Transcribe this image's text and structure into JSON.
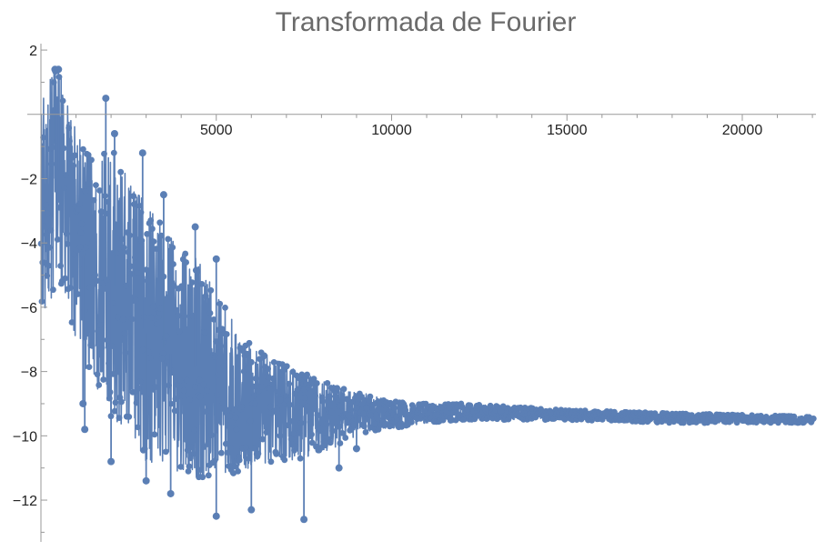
{
  "chart_data": {
    "type": "scatter",
    "title": "Transformada de Fourier",
    "xlabel": "",
    "ylabel": "",
    "xlim": [
      0,
      22050
    ],
    "ylim": [
      -13.3,
      2.2
    ],
    "grid": false,
    "joined": true,
    "series_color": "#5B7FB5",
    "x_major_ticks": [
      5000,
      10000,
      15000,
      20000
    ],
    "x_major_tick_labels": [
      "5000",
      "10000",
      "15000",
      "20000"
    ],
    "x_minor_ticks": [
      1000,
      2000,
      3000,
      4000,
      6000,
      7000,
      8000,
      9000,
      11000,
      12000,
      13000,
      14000,
      16000,
      17000,
      18000,
      19000,
      21000,
      22000
    ],
    "y_major_ticks": [
      2,
      -2,
      -4,
      -6,
      -8,
      -10,
      -12
    ],
    "y_major_tick_labels": [
      "2",
      "−2",
      "−4",
      "−6",
      "−8",
      "−10",
      "−12"
    ],
    "y_minor_ticks": [
      1,
      -1,
      -3,
      -5,
      -7,
      -9,
      -11,
      -13
    ],
    "envelope": {
      "x": [
        0,
        300,
        500,
        800,
        1200,
        1600,
        2000,
        2500,
        3000,
        3500,
        4000,
        4500,
        5000,
        5500,
        6000,
        7000,
        8000,
        9000,
        10000,
        11000,
        12000,
        15000,
        18000,
        22050
      ],
      "upper": [
        0.5,
        1.5,
        1.5,
        0.3,
        -1.0,
        -1.5,
        -0.8,
        -2.0,
        -2.8,
        -3.5,
        -4.2,
        -4.5,
        -5.5,
        -6.5,
        -7.2,
        -7.8,
        -8.3,
        -8.6,
        -8.9,
        -9.0,
        -9.0,
        -9.2,
        -9.3,
        -9.4
      ],
      "lower": [
        -6.3,
        -6.0,
        -5.0,
        -6.2,
        -7.8,
        -8.5,
        -9.5,
        -10.3,
        -10.8,
        -11.0,
        -11.2,
        -11.3,
        -11.3,
        -11.2,
        -11.0,
        -10.8,
        -10.6,
        -10.0,
        -9.8,
        -9.6,
        -9.5,
        -9.5,
        -9.6,
        -9.6
      ],
      "points_per_unit_x": 0.14
    },
    "notable_points": [
      {
        "x": 400,
        "y": 1.4
      },
      {
        "x": 500,
        "y": 1.4
      },
      {
        "x": 1850,
        "y": 0.5
      },
      {
        "x": 2100,
        "y": -0.6
      },
      {
        "x": 2900,
        "y": -1.2
      },
      {
        "x": 3500,
        "y": -2.5
      },
      {
        "x": 4400,
        "y": -3.5
      },
      {
        "x": 5000,
        "y": -4.5
      },
      {
        "x": 1200,
        "y": -9.0
      },
      {
        "x": 1250,
        "y": -9.8
      },
      {
        "x": 2000,
        "y": -10.8
      },
      {
        "x": 3000,
        "y": -11.4
      },
      {
        "x": 3700,
        "y": -11.8
      },
      {
        "x": 5000,
        "y": -12.5
      },
      {
        "x": 6000,
        "y": -12.3
      },
      {
        "x": 7500,
        "y": -12.6
      },
      {
        "x": 8500,
        "y": -11.0
      },
      {
        "x": 9000,
        "y": -10.4
      }
    ]
  }
}
